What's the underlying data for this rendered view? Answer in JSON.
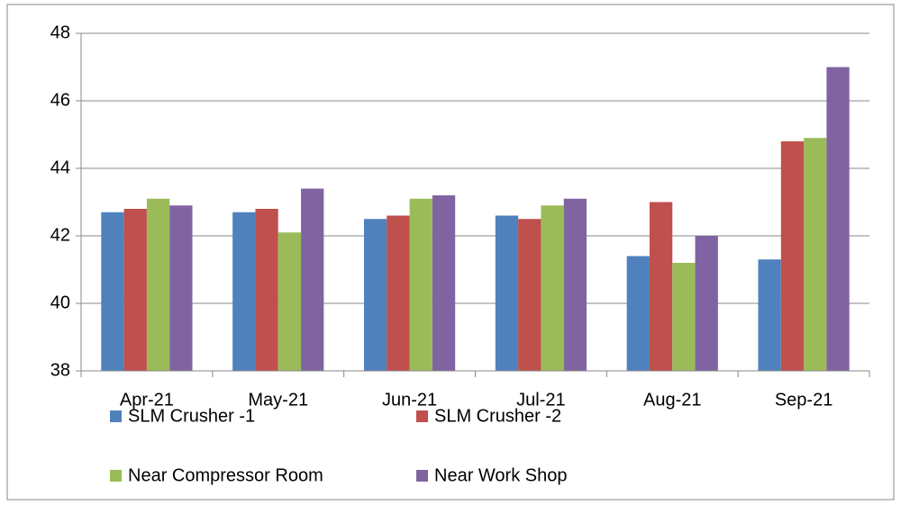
{
  "chart_data": {
    "type": "bar",
    "categories": [
      "Apr-21",
      "May-21",
      "Jun-21",
      "Jul-21",
      "Aug-21",
      "Sep-21"
    ],
    "series": [
      {
        "name": "SLM Crusher -1",
        "color": "#4f81bd",
        "values": [
          42.7,
          42.7,
          42.5,
          42.6,
          41.4,
          41.3
        ]
      },
      {
        "name": "SLM Crusher -2",
        "color": "#c0504d",
        "values": [
          42.8,
          42.8,
          42.6,
          42.5,
          43.0,
          44.8
        ]
      },
      {
        "name": "Near Compressor Room",
        "color": "#9bbb59",
        "values": [
          43.1,
          42.1,
          43.1,
          42.9,
          41.2,
          44.9
        ]
      },
      {
        "name": "Near Work Shop",
        "color": "#8064a2",
        "values": [
          42.9,
          43.4,
          43.2,
          43.1,
          42.0,
          47.0
        ]
      }
    ],
    "ylim": [
      38,
      48
    ],
    "yticks": [
      38,
      40,
      42,
      44,
      46,
      48
    ],
    "grid": true
  }
}
